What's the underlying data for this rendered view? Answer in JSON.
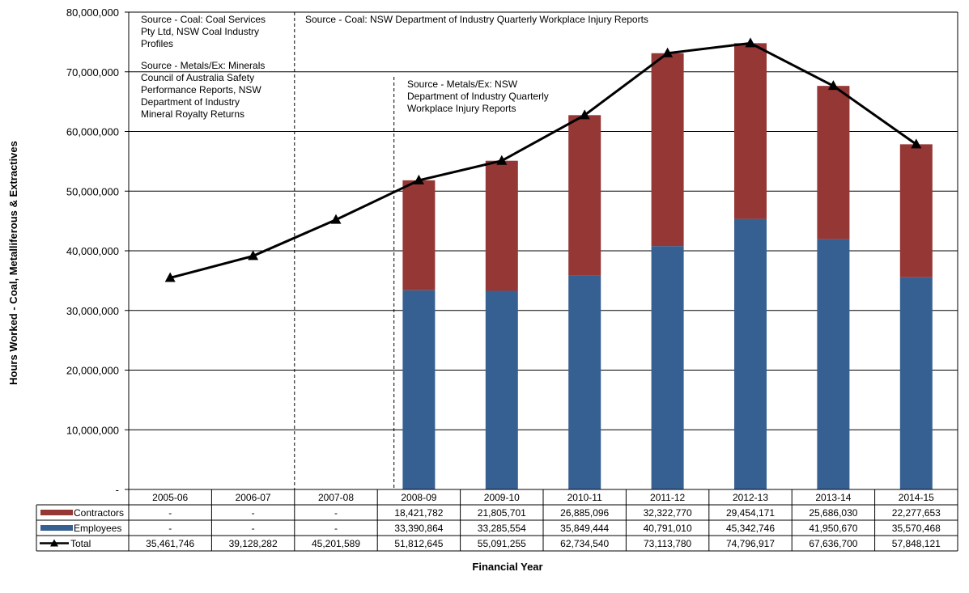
{
  "chart_data": {
    "type": "bar",
    "categories": [
      "2005-06",
      "2006-07",
      "2007-08",
      "2008-09",
      "2009-10",
      "2010-11",
      "2011-12",
      "2012-13",
      "2013-14",
      "2014-15"
    ],
    "series": [
      {
        "name": "Contractors",
        "kind": "stacked-bar",
        "color": "#953735",
        "values": [
          null,
          null,
          null,
          18421782,
          21805701,
          26885096,
          32322770,
          29454171,
          25686030,
          22277653
        ],
        "table_values": [
          "-",
          "-",
          "-",
          "18,421,782",
          "21,805,701",
          "26,885,096",
          "32,322,770",
          "29,454,171",
          "25,686,030",
          "22,277,653"
        ]
      },
      {
        "name": "Employees",
        "kind": "stacked-bar",
        "color": "#376092",
        "values": [
          null,
          null,
          null,
          33390864,
          33285554,
          35849444,
          40791010,
          45342746,
          41950670,
          35570468
        ],
        "table_values": [
          "-",
          "-",
          "-",
          "33,390,864",
          "33,285,554",
          "35,849,444",
          "40,791,010",
          "45,342,746",
          "41,950,670",
          "35,570,468"
        ]
      },
      {
        "name": "Total",
        "kind": "line",
        "color": "#000000",
        "marker": "triangle",
        "values": [
          35461746,
          39128282,
          45201589,
          51812645,
          55091255,
          62734540,
          73113780,
          74796917,
          67636700,
          57848121
        ],
        "table_values": [
          "35,461,746",
          "39,128,282",
          "45,201,589",
          "51,812,645",
          "55,091,255",
          "62,734,540",
          "73,113,780",
          "74,796,917",
          "67,636,700",
          "57,848,121"
        ]
      }
    ],
    "xlabel": "Financial Year",
    "ylabel": "Hours Worked - Coal, Metalliferous & Extractives",
    "ylim": [
      0,
      80000000
    ],
    "yticks": [
      0,
      10000000,
      20000000,
      30000000,
      40000000,
      50000000,
      60000000,
      70000000,
      80000000
    ],
    "ytick_labels": [
      "-",
      "10,000,000",
      "20,000,000",
      "30,000,000",
      "40,000,000",
      "50,000,000",
      "60,000,000",
      "70,000,000",
      "80,000,000"
    ],
    "grid": "horizontal",
    "legend": "data-table",
    "annotations": {
      "source_coal_1": [
        "Source - Coal:  Coal Services",
        "Pty Ltd, NSW Coal Industry",
        "Profiles"
      ],
      "source_metals_1": [
        "Source - Metals/Ex:  Minerals",
        "Council of Australia Safety",
        "Performance Reports, NSW",
        "Department of Industry",
        "Mineral Royalty Returns"
      ],
      "source_coal_2": [
        "Source - Coal:  NSW Department of Industry Quarterly Workplace Injury Reports"
      ],
      "source_metals_2": [
        "Source - Metals/Ex:  NSW",
        "Department of Industry Quarterly",
        "Workplace Injury Reports"
      ]
    }
  }
}
